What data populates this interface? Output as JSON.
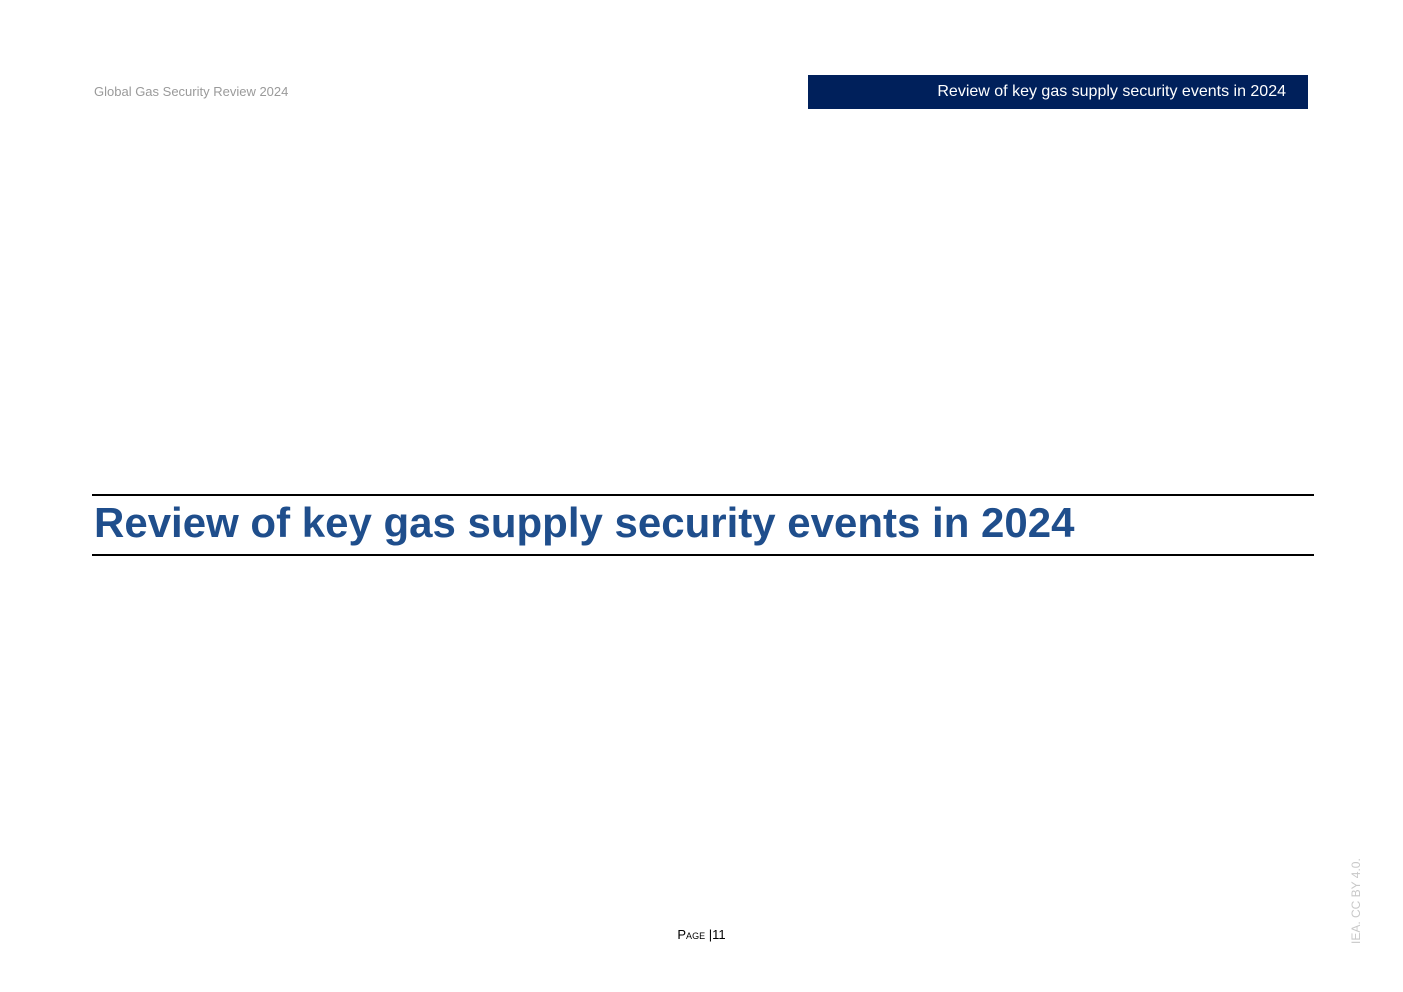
{
  "header": {
    "running_title": "Global Gas Security Review 2024",
    "section_label": "Review of key gas supply security events in 2024",
    "bar_color": "#00205b"
  },
  "main": {
    "title": "Review of key gas supply security events in 2024",
    "title_color": "#1f4e8c"
  },
  "footer": {
    "page_word": "Page",
    "separator": "|",
    "page_number": "11",
    "license": "IEA. CC BY 4.0."
  }
}
